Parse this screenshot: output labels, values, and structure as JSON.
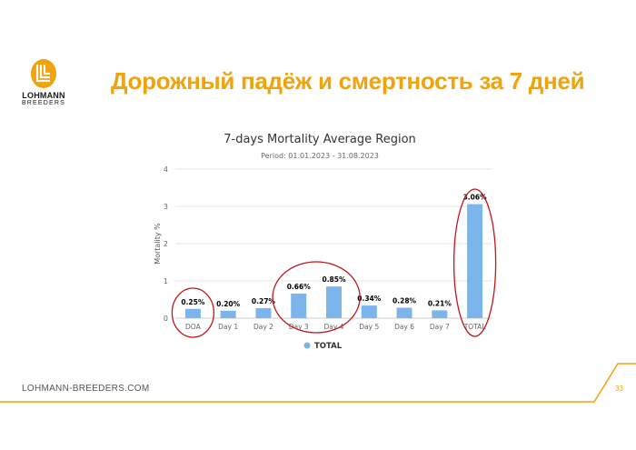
{
  "slide": {
    "title": "Дорожный падёж и смертность за 7 дней",
    "footer_url": "LOHMANN-BREEDERS.COM",
    "page_number": "33",
    "accent_color": "#f0a30a"
  },
  "logo": {
    "name_main": "LOHMANN",
    "name_sub": "BREEDERS",
    "icon": "lohmann-logo-icon"
  },
  "chart_data": {
    "type": "bar",
    "title": "7-days Mortality Average Region",
    "subtitle": "Period: 01.01.2023 - 31.08.2023",
    "ylabel": "Mortality %",
    "ylim": [
      0,
      4
    ],
    "yticks": [
      "0",
      "1",
      "2",
      "3",
      "4"
    ],
    "categories": [
      "DOA",
      "Day 1",
      "Day 2",
      "Day 3",
      "Day 4",
      "Day 5",
      "Day 6",
      "Day 7",
      "TOTAL"
    ],
    "series": [
      {
        "name": "TOTAL",
        "color": "#7cb5ec",
        "values": [
          0.25,
          0.2,
          0.27,
          0.66,
          0.85,
          0.34,
          0.28,
          0.21,
          3.06
        ],
        "labels": [
          "0.25%",
          "0.20%",
          "0.27%",
          "0.66%",
          "0.85%",
          "0.34%",
          "0.28%",
          "0.21%",
          "3.06%"
        ]
      }
    ],
    "grid": true,
    "legend_position": "bottom",
    "annotation_color": "#c0161d"
  }
}
